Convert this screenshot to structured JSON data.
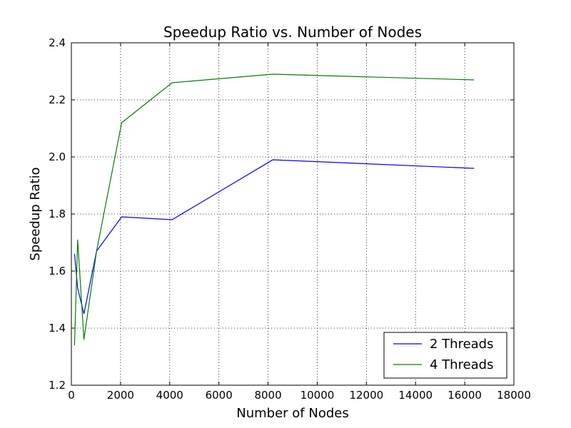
{
  "chart_data": {
    "type": "line",
    "title": "Speedup Ratio vs. Number of Nodes",
    "xlabel": "Number of Nodes",
    "ylabel": "Speedup Ratio",
    "xlim": [
      0,
      18000
    ],
    "ylim": [
      1.2,
      2.4
    ],
    "xticks": [
      "0",
      "2000",
      "4000",
      "6000",
      "8000",
      "10000",
      "12000",
      "14000",
      "16000",
      "18000"
    ],
    "yticks": [
      "1.2",
      "1.4",
      "1.6",
      "1.8",
      "2.0",
      "2.2",
      "2.4"
    ],
    "xtick_values": [
      0,
      2000,
      4000,
      6000,
      8000,
      10000,
      12000,
      14000,
      16000,
      18000
    ],
    "ytick_values": [
      1.2,
      1.4,
      1.6,
      1.8,
      2.0,
      2.2,
      2.4
    ],
    "grid": true,
    "legend_position": "bottom-right",
    "x": [
      128,
      256,
      512,
      1024,
      2048,
      4096,
      8192,
      16384
    ],
    "series": [
      {
        "name": "2 Threads",
        "color": "#0000ff",
        "values": [
          1.66,
          1.54,
          1.45,
          1.67,
          1.79,
          1.78,
          1.99,
          1.96
        ]
      },
      {
        "name": "4 Threads",
        "color": "#008000",
        "values": [
          1.34,
          1.71,
          1.36,
          1.67,
          2.12,
          2.26,
          2.29,
          2.27
        ]
      }
    ]
  }
}
